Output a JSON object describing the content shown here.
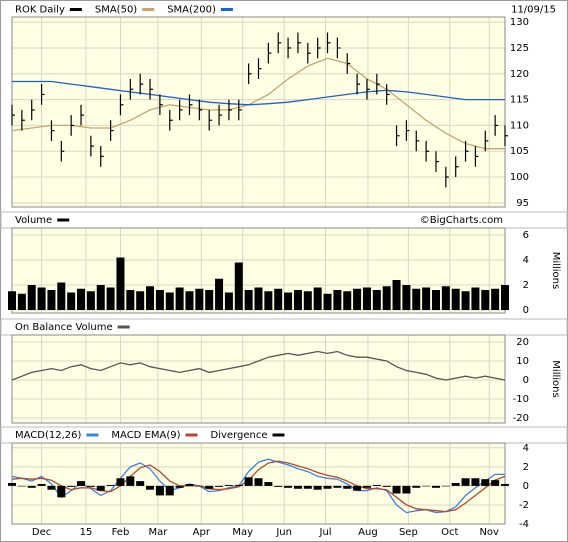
{
  "chart_data": [
    {
      "type": "ohlc",
      "title": "ROK Daily",
      "date": "11/09/15",
      "color": "#000000",
      "x": [
        0,
        5,
        10,
        15,
        20,
        25,
        30,
        35,
        40,
        45,
        50,
        55,
        60,
        65,
        70,
        75,
        80,
        85,
        90,
        95,
        100,
        105,
        110,
        115,
        120,
        125,
        130,
        135,
        140,
        145,
        150,
        155,
        160,
        165,
        170,
        175,
        180,
        185,
        190,
        195,
        200,
        205,
        210,
        215,
        220,
        225,
        230,
        235,
        240,
        245,
        250
      ],
      "high": [
        114,
        113,
        115,
        118,
        111,
        107,
        112,
        114,
        108,
        106,
        111,
        116,
        119,
        120,
        119,
        116,
        113,
        115,
        116,
        115,
        113,
        114,
        115,
        115,
        122,
        123,
        126,
        128,
        127,
        128,
        126,
        127,
        128,
        127,
        124,
        120,
        119,
        120,
        118,
        110,
        111,
        109,
        107,
        105,
        102,
        104,
        107,
        106,
        109,
        112,
        110
      ],
      "low": [
        110,
        109,
        111,
        114,
        107,
        103,
        108,
        110,
        104,
        102,
        107,
        112,
        115,
        116,
        115,
        112,
        109,
        111,
        112,
        111,
        109,
        110,
        111,
        111,
        118,
        119,
        122,
        124,
        123,
        124,
        122,
        123,
        124,
        123,
        120,
        116,
        115,
        116,
        114,
        106,
        107,
        105,
        103,
        101,
        98,
        100,
        103,
        102,
        105,
        108,
        106
      ],
      "close": [
        112,
        111,
        113,
        116,
        109,
        105,
        110,
        112,
        106,
        104,
        109,
        114,
        117,
        118,
        117,
        114,
        111,
        113,
        114,
        113,
        111,
        112,
        113,
        113,
        120,
        121,
        124,
        126,
        125,
        126,
        124,
        125,
        126,
        125,
        122,
        118,
        117,
        118,
        116,
        108,
        109,
        107,
        105,
        103,
        100,
        102,
        105,
        104,
        107,
        110,
        108
      ],
      "overlays": [
        {
          "name": "SMA(50)",
          "color": "#c9a46a",
          "x": [
            0,
            10,
            20,
            30,
            40,
            50,
            60,
            70,
            80,
            90,
            100,
            110,
            120,
            130,
            140,
            150,
            160,
            170,
            180,
            190,
            200,
            210,
            220,
            230,
            240,
            250
          ],
          "values": [
            109,
            109.5,
            110,
            110,
            109.5,
            109.5,
            111,
            113,
            114,
            113.5,
            113,
            113,
            114,
            116,
            119,
            121.5,
            123,
            122,
            119,
            117,
            114,
            111,
            108.5,
            106.5,
            105.5,
            105.5
          ]
        },
        {
          "name": "SMA(200)",
          "color": "#1f5fcf",
          "x": [
            0,
            10,
            20,
            30,
            40,
            50,
            60,
            70,
            80,
            90,
            100,
            110,
            120,
            130,
            140,
            150,
            160,
            170,
            180,
            190,
            200,
            210,
            220,
            230,
            240,
            250
          ],
          "values": [
            118.5,
            118.5,
            118.5,
            118,
            117.5,
            117,
            116.5,
            116,
            115.5,
            115,
            114.5,
            114.2,
            114,
            114.2,
            114.5,
            115,
            115.5,
            116,
            116.5,
            116.8,
            116.5,
            116,
            115.5,
            115,
            115,
            115
          ]
        }
      ],
      "xlim": [
        0,
        250
      ],
      "ylim": [
        94.2,
        131
      ],
      "yticks": [
        95,
        100,
        105,
        110,
        115,
        120,
        125,
        130
      ]
    },
    {
      "type": "bar",
      "title": "Volume",
      "credit": "©BigCharts.com",
      "y_label": "Millions",
      "color": "#000000",
      "x": [
        0,
        5,
        10,
        15,
        20,
        25,
        30,
        35,
        40,
        45,
        50,
        55,
        60,
        65,
        70,
        75,
        80,
        85,
        90,
        95,
        100,
        105,
        110,
        115,
        120,
        125,
        130,
        135,
        140,
        145,
        150,
        155,
        160,
        165,
        170,
        175,
        180,
        185,
        190,
        195,
        200,
        205,
        210,
        215,
        220,
        225,
        230,
        235,
        240,
        245,
        250
      ],
      "values": [
        1.5,
        1.3,
        2,
        1.8,
        1.6,
        2.2,
        1.4,
        1.7,
        1.5,
        2,
        1.8,
        4.2,
        1.6,
        1.5,
        1.9,
        1.6,
        1.4,
        1.8,
        1.5,
        1.7,
        1.6,
        2.5,
        1.4,
        3.8,
        1.6,
        1.8,
        1.5,
        1.7,
        1.4,
        1.6,
        1.5,
        1.8,
        1.3,
        1.6,
        1.5,
        1.7,
        1.8,
        1.6,
        1.9,
        2.4,
        2,
        1.7,
        1.8,
        1.6,
        1.9,
        1.7,
        1.5,
        1.8,
        1.6,
        1.7,
        2
      ],
      "xlim": [
        0,
        250
      ],
      "ylim": [
        -0.24,
        6.56
      ],
      "yticks": [
        0,
        2,
        4,
        6
      ]
    },
    {
      "type": "line",
      "title": "On Balance Volume",
      "y_label": "Millions",
      "color": "#555555",
      "x": [
        0,
        5,
        10,
        15,
        20,
        25,
        30,
        35,
        40,
        45,
        50,
        55,
        60,
        65,
        70,
        75,
        80,
        85,
        90,
        95,
        100,
        105,
        110,
        115,
        120,
        125,
        130,
        135,
        140,
        145,
        150,
        155,
        160,
        165,
        170,
        175,
        180,
        185,
        190,
        195,
        200,
        205,
        210,
        215,
        220,
        225,
        230,
        235,
        240,
        245,
        250
      ],
      "values": [
        0,
        2,
        4,
        5,
        6,
        5,
        7,
        8,
        6,
        5,
        7,
        9,
        8,
        9,
        7,
        6,
        5,
        4,
        5,
        6,
        4,
        5,
        6,
        7,
        8,
        10,
        12,
        13,
        14,
        13,
        14,
        15,
        14,
        15,
        13,
        12,
        12,
        11,
        10,
        7,
        5,
        4,
        3,
        1,
        0,
        1,
        2,
        1,
        2,
        1,
        0
      ],
      "xlim": [
        0,
        250
      ],
      "ylim": [
        -22.6,
        23.7
      ],
      "yticks": [
        -20,
        -10,
        0,
        10,
        20
      ]
    },
    {
      "type": "macd",
      "x": [
        0,
        5,
        10,
        15,
        20,
        25,
        30,
        35,
        40,
        45,
        50,
        55,
        60,
        65,
        70,
        75,
        80,
        85,
        90,
        95,
        100,
        105,
        110,
        115,
        120,
        125,
        130,
        135,
        140,
        145,
        150,
        155,
        160,
        165,
        170,
        175,
        180,
        185,
        190,
        195,
        200,
        205,
        210,
        215,
        220,
        225,
        230,
        235,
        240,
        245,
        250
      ],
      "series": [
        {
          "name": "MACD(12,26)",
          "color": "#3b82e6",
          "style": "line",
          "values": [
            1,
            0.8,
            0.5,
            1,
            0.2,
            -1.2,
            -0.5,
            0.3,
            -0.3,
            -1,
            -0.5,
            0.8,
            2,
            2.4,
            1.8,
            0.5,
            -0.5,
            -0.2,
            0.2,
            0,
            -0.6,
            -0.5,
            -0.2,
            0,
            1.5,
            2.5,
            2.8,
            2.5,
            2.2,
            1.8,
            1.5,
            1,
            0.8,
            0.7,
            0.2,
            -0.5,
            -0.5,
            -0.2,
            -0.5,
            -2,
            -2.8,
            -2.6,
            -2.5,
            -2.8,
            -2.7,
            -2.2,
            -1,
            -0.2,
            0.5,
            1.2,
            1.2
          ]
        },
        {
          "name": "MACD EMA(9)",
          "color": "#b5472f",
          "style": "line",
          "values": [
            0.7,
            0.8,
            0.7,
            0.8,
            0.6,
            0,
            -0.4,
            -0.2,
            -0.2,
            -0.5,
            -0.6,
            0,
            1,
            1.9,
            2.2,
            1.5,
            0.5,
            0,
            0,
            0,
            -0.3,
            -0.4,
            -0.3,
            -0.1,
            0.6,
            1.7,
            2.4,
            2.6,
            2.4,
            2.1,
            1.8,
            1.4,
            1.1,
            0.9,
            0.5,
            0,
            -0.3,
            -0.3,
            -0.4,
            -1.2,
            -2,
            -2.4,
            -2.5,
            -2.6,
            -2.7,
            -2.5,
            -1.8,
            -1,
            -0.2,
            0.6,
            1
          ]
        },
        {
          "name": "Divergence",
          "color": "#000000",
          "style": "bar",
          "values": [
            0.3,
            0,
            -0.2,
            0.2,
            -0.4,
            -1.2,
            -0.1,
            0.5,
            -0.1,
            -0.5,
            0.1,
            0.8,
            1,
            0.5,
            -0.4,
            -1,
            -1,
            -0.2,
            0.2,
            0,
            -0.3,
            -0.1,
            0.1,
            0.1,
            0.9,
            0.8,
            0.4,
            -0.1,
            -0.2,
            -0.3,
            -0.3,
            -0.4,
            -0.3,
            -0.2,
            -0.3,
            -0.5,
            -0.2,
            0.1,
            -0.1,
            -0.8,
            -0.8,
            -0.2,
            0,
            -0.2,
            0,
            0.3,
            0.8,
            0.8,
            0.7,
            0.6,
            0.2
          ]
        }
      ],
      "xlim": [
        0,
        250
      ],
      "ylim": [
        -4,
        4.5
      ],
      "yticks": [
        -4,
        -2,
        0,
        2,
        4
      ],
      "xticks": [
        {
          "value": 15,
          "label": "Dec"
        },
        {
          "value": 37.5,
          "label": "15"
        },
        {
          "value": 55,
          "label": "Feb"
        },
        {
          "value": 74,
          "label": "Mar"
        },
        {
          "value": 96,
          "label": "Apr"
        },
        {
          "value": 117,
          "label": "May"
        },
        {
          "value": 138,
          "label": "Jun"
        },
        {
          "value": 159,
          "label": "Jul"
        },
        {
          "value": 180.5,
          "label": "Aug"
        },
        {
          "value": 201,
          "label": "Sep"
        },
        {
          "value": 222,
          "label": "Oct"
        },
        {
          "value": 242,
          "label": "Nov"
        }
      ]
    }
  ]
}
